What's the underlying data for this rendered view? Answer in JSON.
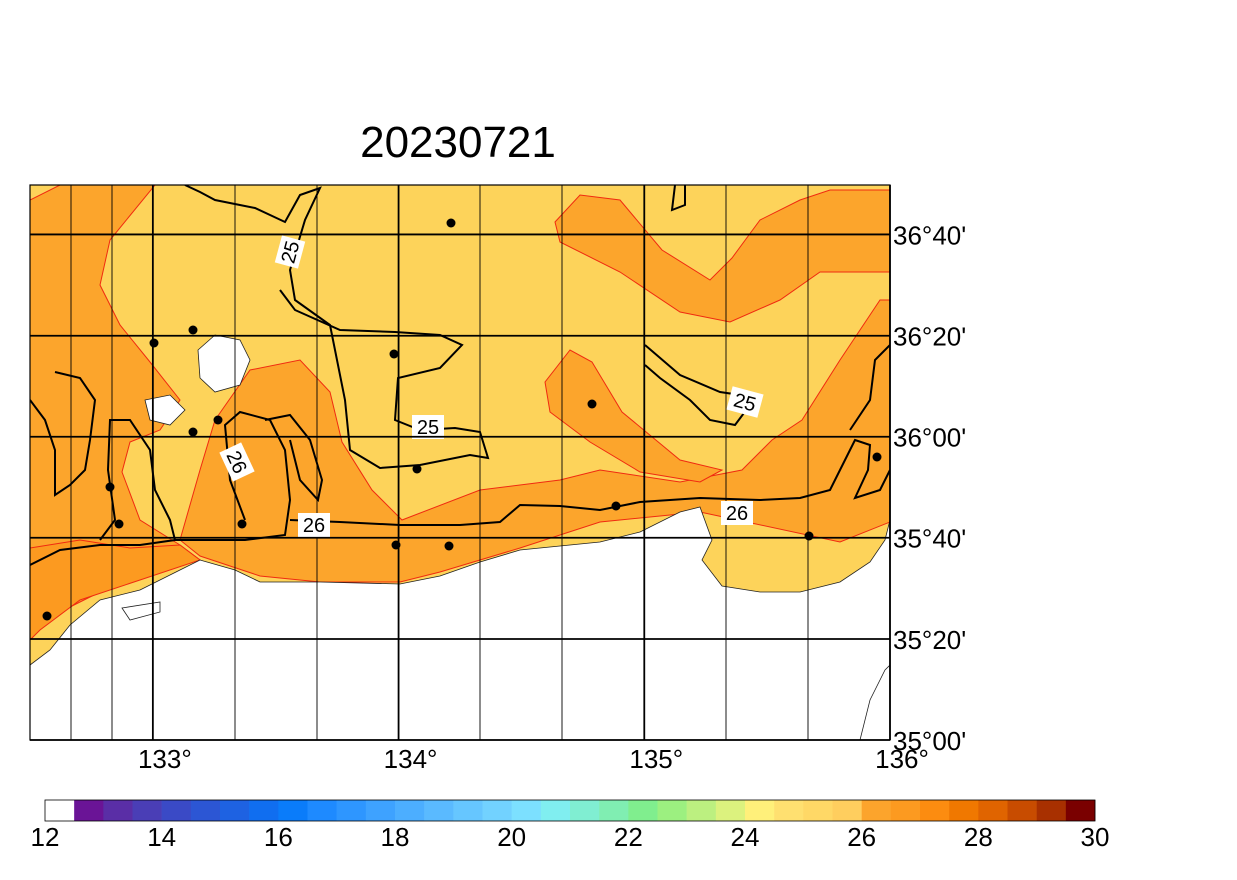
{
  "map": {
    "title": "20230721",
    "xlim": [
      132.5,
      136
    ],
    "ylim": [
      35,
      36.83
    ],
    "xticks": [
      {
        "value": 133,
        "label": "133°"
      },
      {
        "value": 134,
        "label": "134°"
      },
      {
        "value": 135,
        "label": "135°"
      },
      {
        "value": 136,
        "label": "136°"
      }
    ],
    "yticks": [
      {
        "value": 35,
        "label": "35°00'"
      },
      {
        "value": 35.333,
        "label": "35°20'"
      },
      {
        "value": 35.667,
        "label": "35°40'"
      },
      {
        "value": 36,
        "label": "36°00'"
      },
      {
        "value": 36.333,
        "label": "36°20'"
      },
      {
        "value": 36.667,
        "label": "36°40'"
      }
    ],
    "contour_labels": [
      25,
      25,
      25,
      26,
      26,
      26
    ],
    "colorbar": {
      "lim": [
        12,
        30
      ],
      "ticks": [
        12,
        14,
        16,
        18,
        20,
        22,
        24,
        26,
        28,
        30
      ],
      "colors": [
        "#ffffff",
        "#6a1496",
        "#5a2ea6",
        "#4a3eb6",
        "#3a4ac6",
        "#2c56d4",
        "#1e62e2",
        "#106ef0",
        "#0a7cfa",
        "#1e8aff",
        "#2e96ff",
        "#3ea2ff",
        "#4caeff",
        "#5abaff",
        "#66c6ff",
        "#72d2ff",
        "#7ce0ff",
        "#80eef0",
        "#80eed2",
        "#80eeb2",
        "#80ee8e",
        "#9cf080",
        "#bcf080",
        "#dcf27e",
        "#fff07a",
        "#ffe070",
        "#ffd866",
        "#ffce5e",
        "#fca42c",
        "#fc9a20",
        "#fc8c10",
        "#f07800",
        "#e06400",
        "#c84c00",
        "#a83000",
        "#7a0000"
      ]
    }
  }
}
